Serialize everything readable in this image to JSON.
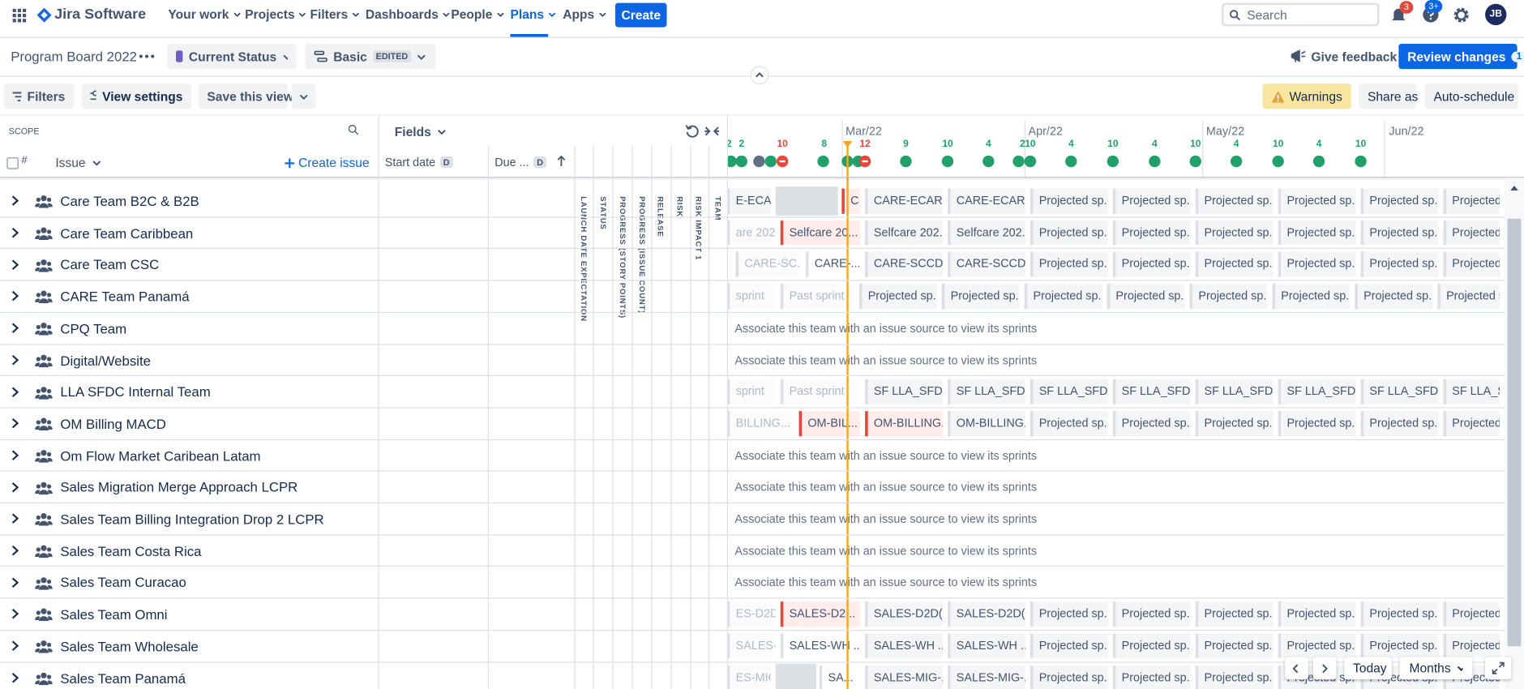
{
  "nav": {
    "product": "Jira Software",
    "items": [
      "Your work",
      "Projects",
      "Filters",
      "Dashboards",
      "People",
      "Plans",
      "Apps"
    ],
    "create": "Create",
    "search": "Search",
    "notifications": 3,
    "help_badge": "3+",
    "avatar": "JB"
  },
  "toolbar": {
    "board": "Program Board 2022",
    "status": "Current Status",
    "view": "Basic",
    "view_badge": "EDITED",
    "feedback": "Give feedback",
    "review": "Review changes",
    "review_count": 1
  },
  "actions": {
    "filters": "Filters",
    "view_settings": "View settings",
    "save": "Save this view",
    "warnings": "Warnings",
    "share": "Share as",
    "auto": "Auto-schedule"
  },
  "scope": {
    "label": "SCOPE",
    "hash": "#",
    "issue": "Issue",
    "create": "Create issue"
  },
  "fields": {
    "label": "Fields",
    "start": "Start date",
    "start_badge": "D",
    "due": "Due ...",
    "due_badge": "D",
    "columns": [
      "LAUNCH DATE EXPECTATION",
      "STATUS",
      "PROGRESS (STORY POINTS)",
      "PROGRESS (ISSUE COUNT)",
      "RELEASE",
      "RISK",
      "RISK IMPACT 1",
      "TEAM"
    ]
  },
  "timeline": {
    "months": [
      "Mar/22",
      "Apr/22",
      "May/22",
      "Jun/22"
    ],
    "sprint_counts": [
      2,
      2,
      10,
      8,
      12,
      9,
      10,
      4,
      2,
      10,
      4,
      10,
      4,
      10,
      4,
      10,
      4,
      10
    ],
    "controls": {
      "today": "Today",
      "scale": "Months"
    }
  },
  "rows": [
    {
      "name": "Care Team B2C & B2B",
      "sprints": [
        "E-ECAR...",
        "C",
        "CARE-ECAR...",
        "CARE-ECAR...",
        "Projected sp...",
        "Projected sp...",
        "Projected sp...",
        "Projected sp...",
        "Projected sp...",
        "Projected s"
      ]
    },
    {
      "name": "Care Team Caribbean",
      "sprints": [
        "are 202...",
        "Selfcare 20...",
        "Selfcare 202...",
        "Selfcare 202...",
        "Projected sp...",
        "Projected sp...",
        "Projected sp...",
        "Projected sp...",
        "Projected sp...",
        "Projected s"
      ]
    },
    {
      "name": "Care Team CSC",
      "sprints": [
        "CARE-SC...",
        "CARE-...",
        "CARE-SCCD...",
        "CARE-SCCD...",
        "Projected sp...",
        "Projected sp...",
        "Projected sp...",
        "Projected sp...",
        "Projected sp...",
        "Projected s"
      ]
    },
    {
      "name": "CARE Team Panamá",
      "sprints": [
        "sprint",
        "Past sprint",
        "Projected sp...",
        "Projected sp...",
        "Projected sp...",
        "Projected sp...",
        "Projected sp...",
        "Projected sp...",
        "Projected sp...",
        "Projected sp"
      ]
    },
    {
      "name": "CPQ Team",
      "message": "Associate this team with an issue source to view its sprints"
    },
    {
      "name": "Digital/Website",
      "message": "Associate this team with an issue source to view its sprints"
    },
    {
      "name": "LLA SFDC Internal Team",
      "sprints": [
        "sprint",
        "Past sprint",
        "SF LLA_SFD...",
        "SF LLA_SFD...",
        "SF LLA_SFD...",
        "SF LLA_SFD...",
        "SF LLA_SFD...",
        "SF LLA_SFD...",
        "SF LLA_SFD...",
        "SF LLA_SFD"
      ]
    },
    {
      "name": "OM Billing MACD",
      "sprints": [
        "BILLING...",
        "OM-BIL...",
        "OM-BILLING...",
        "OM-BILLING...",
        "Projected sp...",
        "Projected sp...",
        "Projected sp...",
        "Projected sp...",
        "Projected sp...",
        "Projected s"
      ]
    },
    {
      "name": "Om Flow Market Caribean Latam",
      "message": "Associate this team with an issue source to view its sprints"
    },
    {
      "name": "Sales Migration Merge Approach LCPR",
      "message": "Associate this team with an issue source to view its sprints"
    },
    {
      "name": "Sales Team Billing Integration Drop 2 LCPR",
      "message": "Associate this team with an issue source to view its sprints"
    },
    {
      "name": "Sales Team Costa Rica",
      "message": "Associate this team with an issue source to view its sprints"
    },
    {
      "name": "Sales Team Curacao",
      "message": "Associate this team with an issue source to view its sprints"
    },
    {
      "name": "Sales Team Omni",
      "sprints": [
        "ES-D2D(...",
        "SALES-D2...",
        "SALES-D2D(...",
        "SALES-D2D(...",
        "Projected sp...",
        "Projected sp...",
        "Projected sp...",
        "Projected sp...",
        "Projected sp...",
        "Projected s"
      ]
    },
    {
      "name": "Sales Team Wholesale",
      "sprints": [
        "SALES-...",
        "SALES-WH ...",
        "SALES-WH ...",
        "SALES-WH ...",
        "Projected sp...",
        "Projected sp...",
        "Projected sp...",
        "Projected sp...",
        "Projected sp...",
        "Projected s"
      ]
    },
    {
      "name": "Sales Team Panamá",
      "sprints": [
        "ES-MIG-...",
        "SA...",
        "SALES-MIG-...",
        "SALES-MIG-...",
        "Projected sp...",
        "Projected sp...",
        "Projected sp...",
        "Projected sp...",
        "Projected sp...",
        "Projected s"
      ]
    }
  ]
}
